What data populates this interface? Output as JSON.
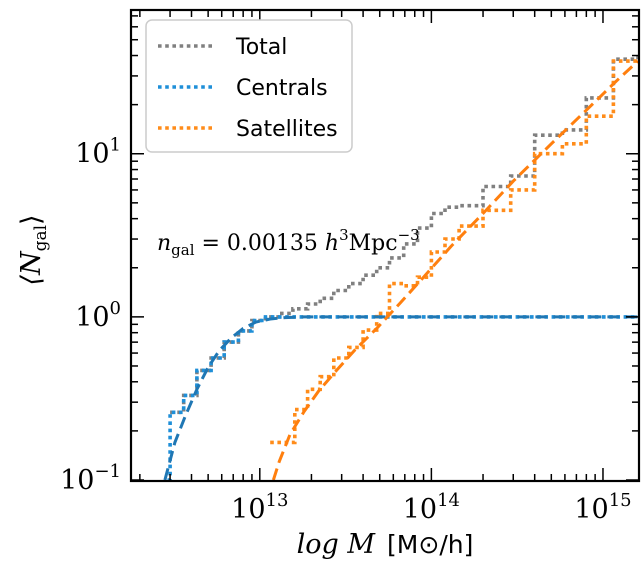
{
  "chart_data": {
    "type": "line",
    "xlabel_math": "log M",
    "xlabel_unit": "[M⊙/h]",
    "ylabel_math": "⟨N",
    "ylabel_sub": "gal",
    "ylabel_close": "⟩",
    "xscale": "log",
    "yscale": "log",
    "xlim": [
      1800000000000.0,
      1600000000000000.0
    ],
    "ylim": [
      0.1,
      75
    ],
    "grid": false,
    "legend_position": "upper left",
    "x_ticks": [
      {
        "value": 10000000000000.0,
        "base": "10",
        "exp": "13"
      },
      {
        "value": 100000000000000.0,
        "base": "10",
        "exp": "14"
      },
      {
        "value": 1000000000000000.0,
        "base": "10",
        "exp": "15"
      }
    ],
    "y_ticks": [
      {
        "value": 0.1,
        "base": "10",
        "exp": "−1"
      },
      {
        "value": 1,
        "base": "10",
        "exp": "0"
      },
      {
        "value": 10,
        "base": "10",
        "exp": "1"
      }
    ],
    "annotation": {
      "n": "n",
      "sub": "gal",
      "rest": " = 0.00135 ",
      "h": "h",
      "hexp": "3",
      "mpc": "Mpc",
      "mpcexp": "−3"
    },
    "colors": {
      "total": "#808080",
      "centrals": "#1f8fd8",
      "satellites": "#ff8c1a",
      "model_centrals": "#1f77b4",
      "model_satellites": "#ff7f0e"
    },
    "series": [
      {
        "name": "Total",
        "style": "dotted-step",
        "x": [
          3000000000000.0,
          3600000000000.0,
          4300000000000.0,
          5200000000000.0,
          6200000000000.0,
          7500000000000.0,
          9000000000000.0,
          10800000000000.0,
          13000000000000.0,
          15600000000000.0,
          19000000000000.0,
          22500000000000.0,
          27000000000000.0,
          33000000000000.0,
          40000000000000.0,
          48000000000000.0,
          57000000000000.0,
          69000000000000.0,
          83000000000000.0,
          100000000000000.0,
          120000000000000.0,
          145000000000000.0,
          200000000000000.0,
          290000000000000.0,
          400000000000000.0,
          580000000000000.0,
          800000000000000.0,
          1150000000000000.0,
          1600000000000000.0
        ],
        "y": [
          0.26,
          0.33,
          0.47,
          0.56,
          0.7,
          0.82,
          0.95,
          1.0,
          1.05,
          1.12,
          1.2,
          1.3,
          1.45,
          1.6,
          1.8,
          2.0,
          2.3,
          2.8,
          3.5,
          4.3,
          4.7,
          4.8,
          6.3,
          7.3,
          13,
          14,
          22,
          38,
          40
        ]
      },
      {
        "name": "Centrals",
        "style": "dotted-step",
        "x": [
          2900000000000.0,
          3000000000000.0,
          3600000000000.0,
          4300000000000.0,
          5200000000000.0,
          6200000000000.0,
          7500000000000.0,
          9000000000000.0,
          10800000000000.0,
          13000000000000.0,
          1600000000000000.0
        ],
        "y": [
          0.1,
          0.26,
          0.33,
          0.47,
          0.56,
          0.7,
          0.82,
          0.95,
          1.0,
          1.0,
          1.0
        ]
      },
      {
        "name": "Satellites",
        "style": "dotted-step",
        "x": [
          11500000000000.0,
          13000000000000.0,
          16000000000000.0,
          19000000000000.0,
          22500000000000.0,
          27000000000000.0,
          33000000000000.0,
          40000000000000.0,
          48000000000000.0,
          57000000000000.0,
          69000000000000.0,
          83000000000000.0,
          100000000000000.0,
          120000000000000.0,
          145000000000000.0,
          200000000000000.0,
          290000000000000.0,
          400000000000000.0,
          580000000000000.0,
          800000000000000.0,
          1150000000000000.0,
          1600000000000000.0
        ],
        "y": [
          0.17,
          0.17,
          0.27,
          0.36,
          0.43,
          0.56,
          0.65,
          0.83,
          1.05,
          1.6,
          1.55,
          1.75,
          2.5,
          3.0,
          3.6,
          4.5,
          6.0,
          10.0,
          11.5,
          17,
          37,
          38
        ]
      },
      {
        "name": "",
        "style": "dashed-model",
        "colorKey": "model_centrals",
        "x": [
          2800000000000.0,
          3200000000000.0,
          3700000000000.0,
          4300000000000.0,
          5000000000000.0,
          5800000000000.0,
          6800000000000.0,
          8000000000000.0,
          9500000000000.0,
          11500000000000.0,
          14000000000000.0,
          18000000000000.0,
          25000000000000.0,
          40000000000000.0,
          100000000000000.0,
          1000000000000000.0,
          1600000000000000.0
        ],
        "y": [
          0.1,
          0.17,
          0.25,
          0.36,
          0.49,
          0.62,
          0.74,
          0.85,
          0.93,
          0.97,
          0.99,
          1.0,
          1.0,
          1.0,
          1.0,
          1.0,
          1.0
        ]
      },
      {
        "name": "",
        "style": "dashed-model",
        "colorKey": "model_satellites",
        "x": [
          12000000000000.0,
          13000000000000.0,
          15000000000000.0,
          18000000000000.0,
          22000000000000.0,
          28000000000000.0,
          36000000000000.0,
          48000000000000.0,
          65000000000000.0,
          90000000000000.0,
          130000000000000.0,
          200000000000000.0,
          300000000000000.0,
          500000000000000.0,
          800000000000000.0,
          1200000000000000.0,
          1600000000000000.0
        ],
        "y": [
          0.1,
          0.13,
          0.19,
          0.26,
          0.35,
          0.47,
          0.63,
          0.85,
          1.2,
          1.75,
          2.7,
          4.3,
          6.8,
          11.5,
          18.5,
          28,
          37
        ]
      }
    ]
  }
}
